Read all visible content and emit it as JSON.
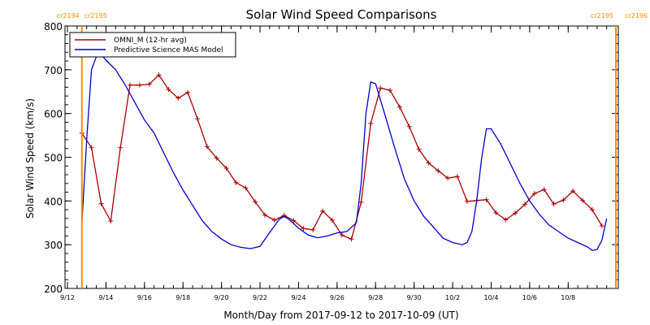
{
  "chart_data": {
    "type": "line",
    "title": "Solar Wind Speed Comparisons",
    "xlabel": "Month/Day from 2017-09-12 to 2017-10-09 (UT)",
    "ylabel": "Solar Wind Speed (km/s)",
    "ylim": [
      200,
      800
    ],
    "xlim": [
      "2017-09-12",
      "2017-10-09"
    ],
    "yticks": [
      200,
      300,
      400,
      500,
      600,
      700,
      800
    ],
    "xticks": [
      "2017-09-12",
      "2017-09-14",
      "2017-09-16",
      "2017-09-18",
      "2017-09-20",
      "2017-09-22",
      "2017-09-24",
      "2017-09-26",
      "2017-09-28",
      "2017-09-30",
      "2017-10-02",
      "2017-10-04",
      "2017-10-06",
      "2017-10-08"
    ],
    "xtick_labels": [
      "9/12",
      "9/14",
      "9/16",
      "9/18",
      "9/20",
      "9/22",
      "9/24",
      "9/26",
      "9/28",
      "9/30",
      "10/2",
      "10/4",
      "10/6",
      "10/8"
    ],
    "grid": false,
    "legend_position": "top-left",
    "rotation_markers": [
      {
        "date": "2017-09-12 18:00",
        "label_left": "cr2194",
        "label_right": "cr2195",
        "color": "#ff8c00"
      },
      {
        "date": "2017-10-09 00:00",
        "label_left": "cr2195",
        "label_right": "cr2196",
        "color": "#ff8c00"
      }
    ],
    "series": [
      {
        "name": "OMNI_M (12-hr avg)",
        "color": "#aa0000",
        "marker": "plus",
        "points": [
          [
            "2017-09-12 18:00",
            555
          ],
          [
            "2017-09-13 06:00",
            522
          ],
          [
            "2017-09-13 18:00",
            394
          ],
          [
            "2017-09-14 06:00",
            354
          ],
          [
            "2017-09-14 18:00",
            522
          ],
          [
            "2017-09-15 06:00",
            665
          ],
          [
            "2017-09-15 18:00",
            665
          ],
          [
            "2017-09-16 06:00",
            667
          ],
          [
            "2017-09-16 18:00",
            688
          ],
          [
            "2017-09-17 06:00",
            655
          ],
          [
            "2017-09-17 18:00",
            635
          ],
          [
            "2017-09-18 06:00",
            648
          ],
          [
            "2017-09-18 18:00",
            588
          ],
          [
            "2017-09-19 06:00",
            524
          ],
          [
            "2017-09-19 18:00",
            498
          ],
          [
            "2017-09-20 06:00",
            475
          ],
          [
            "2017-09-20 18:00",
            442
          ],
          [
            "2017-09-21 06:00",
            430
          ],
          [
            "2017-09-21 18:00",
            398
          ],
          [
            "2017-09-22 06:00",
            368
          ],
          [
            "2017-09-22 18:00",
            356
          ],
          [
            "2017-09-23 06:00",
            367
          ],
          [
            "2017-09-23 18:00",
            355
          ],
          [
            "2017-09-24 06:00",
            337
          ],
          [
            "2017-09-24 18:00",
            334
          ],
          [
            "2017-09-25 06:00",
            377
          ],
          [
            "2017-09-25 18:00",
            356
          ],
          [
            "2017-09-26 06:00",
            322
          ],
          [
            "2017-09-26 18:00",
            313
          ],
          [
            "2017-09-27 06:00",
            397
          ],
          [
            "2017-09-27 18:00",
            577
          ],
          [
            "2017-09-28 06:00",
            658
          ],
          [
            "2017-09-28 18:00",
            653
          ],
          [
            "2017-09-29 06:00",
            615
          ],
          [
            "2017-09-29 18:00",
            570
          ],
          [
            "2017-09-30 06:00",
            518
          ],
          [
            "2017-09-30 18:00",
            487
          ],
          [
            "2017-10-01 06:00",
            469
          ],
          [
            "2017-10-01 18:00",
            452
          ],
          [
            "2017-10-02 06:00",
            456
          ],
          [
            "2017-10-02 18:00",
            399
          ],
          [
            "2017-10-03 06:00",
            401
          ],
          [
            "2017-10-03 18:00",
            403
          ],
          [
            "2017-10-04 06:00",
            373
          ],
          [
            "2017-10-04 18:00",
            357
          ],
          [
            "2017-10-05 06:00",
            372
          ],
          [
            "2017-10-05 18:00",
            392
          ],
          [
            "2017-10-06 06:00",
            417
          ],
          [
            "2017-10-06 18:00",
            426
          ],
          [
            "2017-10-07 06:00",
            393
          ],
          [
            "2017-10-07 18:00",
            402
          ],
          [
            "2017-10-08 06:00",
            423
          ],
          [
            "2017-10-08 18:00",
            401
          ],
          [
            "2017-10-09 06:00",
            380
          ],
          [
            "2017-10-09 18:00",
            343
          ]
        ]
      },
      {
        "name": "Predictive Science MAS Model",
        "color": "#0000cc",
        "marker": "none",
        "points": [
          [
            "2017-09-12 18:00",
            350
          ],
          [
            "2017-09-13 00:00",
            540
          ],
          [
            "2017-09-13 06:00",
            700
          ],
          [
            "2017-09-13 12:00",
            730
          ],
          [
            "2017-09-13 18:00",
            735
          ],
          [
            "2017-09-14 00:00",
            722
          ],
          [
            "2017-09-14 12:00",
            700
          ],
          [
            "2017-09-15 00:00",
            665
          ],
          [
            "2017-09-15 12:00",
            625
          ],
          [
            "2017-09-16 00:00",
            585
          ],
          [
            "2017-09-16 12:00",
            555
          ],
          [
            "2017-09-17 00:00",
            510
          ],
          [
            "2017-09-17 12:00",
            465
          ],
          [
            "2017-09-18 00:00",
            425
          ],
          [
            "2017-09-18 12:00",
            390
          ],
          [
            "2017-09-19 00:00",
            355
          ],
          [
            "2017-09-19 12:00",
            330
          ],
          [
            "2017-09-20 00:00",
            313
          ],
          [
            "2017-09-20 12:00",
            300
          ],
          [
            "2017-09-21 00:00",
            294
          ],
          [
            "2017-09-21 12:00",
            291
          ],
          [
            "2017-09-22 00:00",
            296
          ],
          [
            "2017-09-22 12:00",
            328
          ],
          [
            "2017-09-23 00:00",
            358
          ],
          [
            "2017-09-23 06:00",
            365
          ],
          [
            "2017-09-23 12:00",
            358
          ],
          [
            "2017-09-24 00:00",
            338
          ],
          [
            "2017-09-24 12:00",
            322
          ],
          [
            "2017-09-25 00:00",
            316
          ],
          [
            "2017-09-25 12:00",
            320
          ],
          [
            "2017-09-26 00:00",
            327
          ],
          [
            "2017-09-26 12:00",
            330
          ],
          [
            "2017-09-27 00:00",
            350
          ],
          [
            "2017-09-27 06:00",
            440
          ],
          [
            "2017-09-27 12:00",
            600
          ],
          [
            "2017-09-27 18:00",
            672
          ],
          [
            "2017-09-28 00:00",
            668
          ],
          [
            "2017-09-28 12:00",
            595
          ],
          [
            "2017-09-29 00:00",
            520
          ],
          [
            "2017-09-29 12:00",
            450
          ],
          [
            "2017-09-30 00:00",
            400
          ],
          [
            "2017-09-30 12:00",
            365
          ],
          [
            "2017-10-01 00:00",
            340
          ],
          [
            "2017-10-01 12:00",
            315
          ],
          [
            "2017-10-02 00:00",
            305
          ],
          [
            "2017-10-02 12:00",
            300
          ],
          [
            "2017-10-02 18:00",
            305
          ],
          [
            "2017-10-03 00:00",
            330
          ],
          [
            "2017-10-03 06:00",
            400
          ],
          [
            "2017-10-03 12:00",
            495
          ],
          [
            "2017-10-03 18:00",
            565
          ],
          [
            "2017-10-04 00:00",
            565
          ],
          [
            "2017-10-04 12:00",
            530
          ],
          [
            "2017-10-05 00:00",
            485
          ],
          [
            "2017-10-05 12:00",
            440
          ],
          [
            "2017-10-06 00:00",
            400
          ],
          [
            "2017-10-06 12:00",
            370
          ],
          [
            "2017-10-07 00:00",
            345
          ],
          [
            "2017-10-07 12:00",
            330
          ],
          [
            "2017-10-08 00:00",
            315
          ],
          [
            "2017-10-08 12:00",
            305
          ],
          [
            "2017-10-09 00:00",
            295
          ],
          [
            "2017-10-09 06:00",
            287
          ],
          [
            "2017-10-09 12:00",
            289
          ],
          [
            "2017-10-09 18:00",
            310
          ],
          [
            "2017-10-10 00:00",
            360
          ]
        ]
      }
    ]
  }
}
